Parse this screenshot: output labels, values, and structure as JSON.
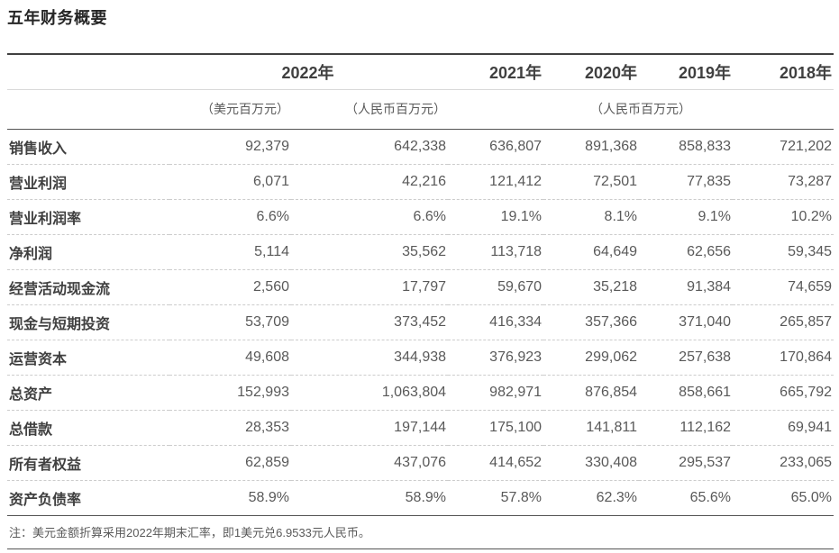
{
  "page": {
    "title": "五年财务概要",
    "note": "注：美元金额折算采用2022年期末汇率，即1美元兑6.9533元人民币。"
  },
  "colors": {
    "title_text": "#262626",
    "header_text": "#404040",
    "value_text": "#595959",
    "top_rule": "#404040",
    "dark_rule": "#545454",
    "light_rule": "#d9d9d9",
    "dashed_rule": "#cccccc",
    "background": "#ffffff"
  },
  "table": {
    "year_headers": {
      "y2022": "2022年",
      "y2021": "2021年",
      "y2020": "2020年",
      "y2019": "2019年",
      "y2018": "2018年"
    },
    "unit_headers": {
      "usd_2022": "（美元百万元）",
      "rmb_2022": "（人民币百万元）",
      "rmb_rest": "（人民币百万元）"
    },
    "rows": [
      {
        "label": "销售收入",
        "values": [
          "92,379",
          "642,338",
          "636,807",
          "891,368",
          "858,833",
          "721,202"
        ]
      },
      {
        "label": "营业利润",
        "values": [
          "6,071",
          "42,216",
          "121,412",
          "72,501",
          "77,835",
          "73,287"
        ]
      },
      {
        "label": "营业利润率",
        "values": [
          "6.6%",
          "6.6%",
          "19.1%",
          "8.1%",
          "9.1%",
          "10.2%"
        ]
      },
      {
        "label": "净利润",
        "values": [
          "5,114",
          "35,562",
          "113,718",
          "64,649",
          "62,656",
          "59,345"
        ]
      },
      {
        "label": "经营活动现金流",
        "values": [
          "2,560",
          "17,797",
          "59,670",
          "35,218",
          "91,384",
          "74,659"
        ]
      },
      {
        "label": "现金与短期投资",
        "values": [
          "53,709",
          "373,452",
          "416,334",
          "357,366",
          "371,040",
          "265,857"
        ]
      },
      {
        "label": "运营资本",
        "values": [
          "49,608",
          "344,938",
          "376,923",
          "299,062",
          "257,638",
          "170,864"
        ]
      },
      {
        "label": "总资产",
        "values": [
          "152,993",
          "1,063,804",
          "982,971",
          "876,854",
          "858,661",
          "665,792"
        ]
      },
      {
        "label": "总借款",
        "values": [
          "28,353",
          "197,144",
          "175,100",
          "141,811",
          "112,162",
          "69,941"
        ]
      },
      {
        "label": "所有者权益",
        "values": [
          "62,859",
          "437,076",
          "414,652",
          "330,408",
          "295,537",
          "233,065"
        ]
      },
      {
        "label": "资产负债率",
        "values": [
          "58.9%",
          "58.9%",
          "57.8%",
          "62.3%",
          "65.6%",
          "65.0%"
        ]
      }
    ]
  }
}
